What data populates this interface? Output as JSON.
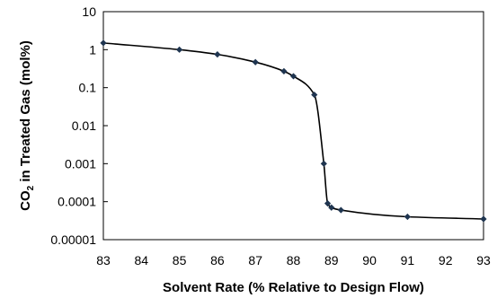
{
  "chart_data": {
    "type": "scatter",
    "title": "",
    "xlabel": "Solvent Rate (% Relative to Design Flow)",
    "ylabel_parts": {
      "pre": "CO",
      "sub": "2",
      "post": " in Treated Gas (mol%)"
    },
    "xlim": [
      83,
      93
    ],
    "ylim": [
      1e-05,
      10
    ],
    "yscale": "log",
    "grid": false,
    "legend": "none",
    "x_ticks": [
      {
        "v": 83,
        "label": "83"
      },
      {
        "v": 84,
        "label": "84"
      },
      {
        "v": 85,
        "label": "85"
      },
      {
        "v": 86,
        "label": "86"
      },
      {
        "v": 87,
        "label": "87"
      },
      {
        "v": 88,
        "label": "88"
      },
      {
        "v": 89,
        "label": "89"
      },
      {
        "v": 90,
        "label": "90"
      },
      {
        "v": 91,
        "label": "91"
      },
      {
        "v": 92,
        "label": "92"
      },
      {
        "v": 93,
        "label": "93"
      }
    ],
    "y_ticks": [
      {
        "v": 10,
        "label": "10"
      },
      {
        "v": 1,
        "label": "1"
      },
      {
        "v": 0.1,
        "label": "0.1"
      },
      {
        "v": 0.01,
        "label": "0.01"
      },
      {
        "v": 0.001,
        "label": "0.001"
      },
      {
        "v": 0.0001,
        "label": "0.0001"
      },
      {
        "v": 1e-05,
        "label": "0.00001"
      }
    ],
    "series": [
      {
        "line_color": "#000000",
        "marker_color": "#1f3550",
        "marker": "diamond",
        "smooth": true,
        "points": [
          {
            "x": 83.0,
            "y": 1.5
          },
          {
            "x": 85.0,
            "y": 1.0
          },
          {
            "x": 86.0,
            "y": 0.75
          },
          {
            "x": 87.0,
            "y": 0.47
          },
          {
            "x": 87.75,
            "y": 0.27
          },
          {
            "x": 88.0,
            "y": 0.2
          },
          {
            "x": 88.55,
            "y": 0.065
          },
          {
            "x": 88.8,
            "y": 0.001
          },
          {
            "x": 88.9,
            "y": 9e-05
          },
          {
            "x": 89.0,
            "y": 7e-05
          },
          {
            "x": 89.25,
            "y": 6e-05
          },
          {
            "x": 91.0,
            "y": 4e-05
          },
          {
            "x": 93.0,
            "y": 3.5e-05
          }
        ]
      }
    ]
  }
}
